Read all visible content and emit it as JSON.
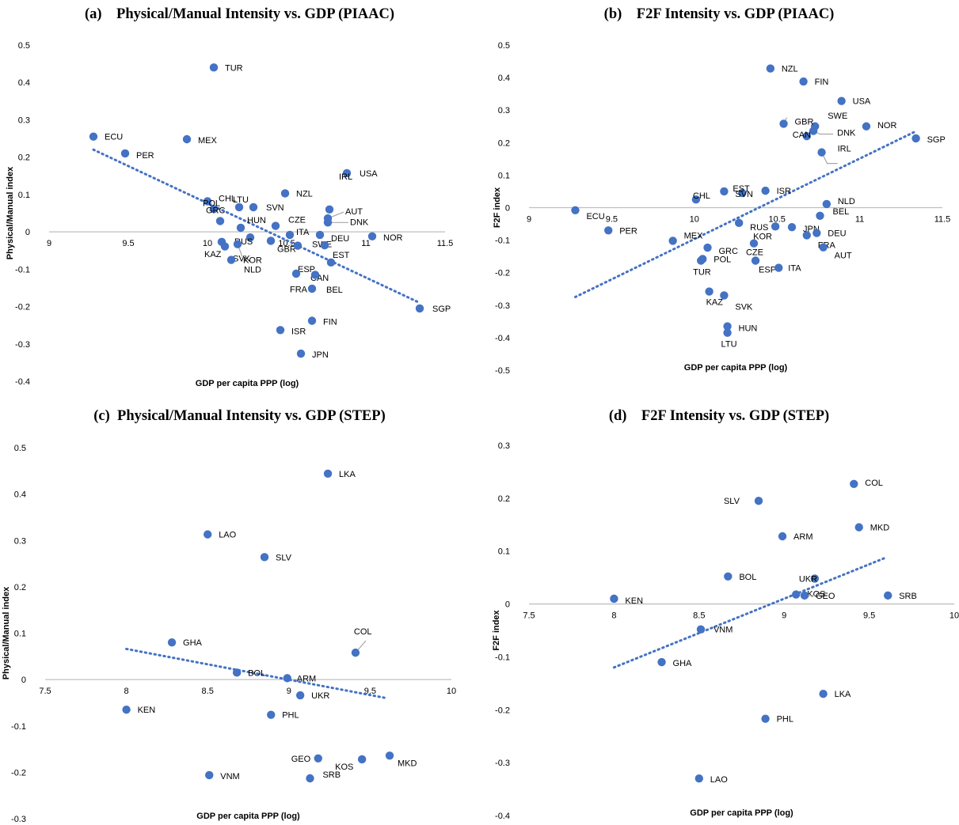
{
  "chart_data": [
    {
      "type": "scatter",
      "title": "(a)    Physical/Manual Intensity vs. GDP (PIAAC)",
      "xlabel": "GDP per capita PPP (log)",
      "ylabel": "Physical/Manual index",
      "xlim": [
        9,
        11.5
      ],
      "ylim": [
        -0.4,
        0.5
      ],
      "xticks": [
        9,
        9.5,
        10,
        10.5,
        11,
        11.5
      ],
      "yticks": [
        -0.4,
        -0.3,
        -0.2,
        -0.1,
        0,
        0.1,
        0.2,
        0.3,
        0.4,
        0.5
      ],
      "trendline": {
        "x": [
          9.28,
          11.34
        ],
        "y": [
          0.22,
          -0.19
        ]
      },
      "color": "#4472C4",
      "points": [
        {
          "label": "TUR",
          "x": 10.04,
          "y": 0.44
        },
        {
          "label": "ECU",
          "x": 9.28,
          "y": 0.255
        },
        {
          "label": "MEX",
          "x": 9.87,
          "y": 0.248
        },
        {
          "label": "PER",
          "x": 9.48,
          "y": 0.21
        },
        {
          "label": "USA",
          "x": 10.88,
          "y": 0.157
        },
        {
          "label": "NZL",
          "x": 10.49,
          "y": 0.103
        },
        {
          "label": "IRL",
          "x": 10.77,
          "y": 0.06
        },
        {
          "label": "CHL",
          "x": 10.0,
          "y": 0.082
        },
        {
          "label": "LTU",
          "x": 10.2,
          "y": 0.066
        },
        {
          "label": "SVN",
          "x": 10.29,
          "y": 0.066
        },
        {
          "label": "POL",
          "x": 10.04,
          "y": 0.061
        },
        {
          "label": "AUT",
          "x": 10.76,
          "y": 0.036
        },
        {
          "label": "DNK",
          "x": 10.76,
          "y": 0.025
        },
        {
          "label": "GRC",
          "x": 10.08,
          "y": 0.029
        },
        {
          "label": "HUN",
          "x": 10.21,
          "y": 0.011
        },
        {
          "label": "CZE",
          "x": 10.43,
          "y": 0.016
        },
        {
          "label": "RUS",
          "x": 10.27,
          "y": -0.015
        },
        {
          "label": "ITA",
          "x": 10.52,
          "y": -0.008
        },
        {
          "label": "DEU",
          "x": 10.71,
          "y": -0.008
        },
        {
          "label": "NOR",
          "x": 11.04,
          "y": -0.012
        },
        {
          "label": "KAZ",
          "x": 10.09,
          "y": -0.027
        },
        {
          "label": "SVK",
          "x": 10.11,
          "y": -0.039
        },
        {
          "label": "KOR",
          "x": 10.19,
          "y": -0.033
        },
        {
          "label": "GBR",
          "x": 10.4,
          "y": -0.024
        },
        {
          "label": "SWE",
          "x": 10.57,
          "y": -0.037
        },
        {
          "label": "EST",
          "x": 10.74,
          "y": -0.036
        },
        {
          "label": "NLD",
          "x": 10.15,
          "y": -0.075
        },
        {
          "label": "ESP",
          "x": 10.78,
          "y": -0.082
        },
        {
          "label": "CAN",
          "x": 10.56,
          "y": -0.112
        },
        {
          "label": "FRA",
          "x": 10.68,
          "y": -0.115
        },
        {
          "label": "BEL",
          "x": 10.66,
          "y": -0.152
        },
        {
          "label": "SGP",
          "x": 11.34,
          "y": -0.205
        },
        {
          "label": "FIN",
          "x": 10.66,
          "y": -0.238
        },
        {
          "label": "ISR",
          "x": 10.46,
          "y": -0.263
        },
        {
          "label": "JPN",
          "x": 10.59,
          "y": -0.326
        }
      ]
    },
    {
      "type": "scatter",
      "title": "(b)    F2F Intensity vs. GDP (PIAAC)",
      "xlabel": "GDP per capita PPP (log)",
      "ylabel": "F2F index",
      "xlim": [
        9,
        11.5
      ],
      "ylim": [
        -0.5,
        0.5
      ],
      "xticks": [
        9,
        9.5,
        10,
        10.5,
        11,
        11.5
      ],
      "yticks": [
        -0.5,
        -0.4,
        -0.3,
        -0.2,
        -0.1,
        0,
        0.1,
        0.2,
        0.3,
        0.4,
        0.5
      ],
      "trendline": {
        "x": [
          9.28,
          11.34
        ],
        "y": [
          -0.275,
          0.235
        ]
      },
      "color": "#4472C4",
      "points": [
        {
          "label": "NZL",
          "x": 10.46,
          "y": 0.428
        },
        {
          "label": "FIN",
          "x": 10.66,
          "y": 0.388
        },
        {
          "label": "USA",
          "x": 10.89,
          "y": 0.328
        },
        {
          "label": "SWE",
          "x": 10.73,
          "y": 0.25
        },
        {
          "label": "GBR",
          "x": 10.54,
          "y": 0.258
        },
        {
          "label": "NOR",
          "x": 11.04,
          "y": 0.25
        },
        {
          "label": "DNK",
          "x": 10.72,
          "y": 0.236
        },
        {
          "label": "CAN",
          "x": 10.68,
          "y": 0.22
        },
        {
          "label": "SGP",
          "x": 11.34,
          "y": 0.213
        },
        {
          "label": "IRL",
          "x": 10.77,
          "y": 0.17
        },
        {
          "label": "EST",
          "x": 10.29,
          "y": 0.045
        },
        {
          "label": "ISR",
          "x": 10.43,
          "y": 0.052
        },
        {
          "label": "CHL",
          "x": 10.01,
          "y": 0.025
        },
        {
          "label": "SVN",
          "x": 10.18,
          "y": 0.05
        },
        {
          "label": "NLD",
          "x": 10.8,
          "y": 0.011
        },
        {
          "label": "ECU",
          "x": 9.28,
          "y": -0.008
        },
        {
          "label": "BEL",
          "x": 10.76,
          "y": -0.025
        },
        {
          "label": "RUS",
          "x": 10.27,
          "y": -0.047
        },
        {
          "label": "JPN",
          "x": 10.59,
          "y": -0.06
        },
        {
          "label": "DEU",
          "x": 10.74,
          "y": -0.078
        },
        {
          "label": "PER",
          "x": 9.48,
          "y": -0.07
        },
        {
          "label": "KOR",
          "x": 10.49,
          "y": -0.058
        },
        {
          "label": "FRA",
          "x": 10.68,
          "y": -0.085
        },
        {
          "label": "MEX",
          "x": 9.87,
          "y": -0.102
        },
        {
          "label": "GRC",
          "x": 10.08,
          "y": -0.123
        },
        {
          "label": "CZE",
          "x": 10.36,
          "y": -0.11
        },
        {
          "label": "AUT",
          "x": 10.78,
          "y": -0.122
        },
        {
          "label": "POL",
          "x": 10.05,
          "y": -0.158
        },
        {
          "label": "ESP",
          "x": 10.37,
          "y": -0.163
        },
        {
          "label": "TUR",
          "x": 10.04,
          "y": -0.163
        },
        {
          "label": "ITA",
          "x": 10.51,
          "y": -0.185
        },
        {
          "label": "KAZ",
          "x": 10.09,
          "y": -0.258
        },
        {
          "label": "SVK",
          "x": 10.18,
          "y": -0.27
        },
        {
          "label": "HUN",
          "x": 10.2,
          "y": -0.365
        },
        {
          "label": "LTU",
          "x": 10.2,
          "y": -0.385
        }
      ]
    },
    {
      "type": "scatter",
      "title": "(c)  Physical/Manual Intensity vs. GDP (STEP)",
      "xlabel": "GDP per capita PPP (log)",
      "ylabel": "Physical/Manual index",
      "xlim": [
        7.5,
        10
      ],
      "ylim": [
        -0.3,
        0.5
      ],
      "xticks": [
        7.5,
        8,
        8.5,
        9,
        9.5,
        10
      ],
      "yticks": [
        -0.3,
        -0.2,
        -0.1,
        0,
        0.1,
        0.2,
        0.3,
        0.4,
        0.5
      ],
      "trendline": {
        "x": [
          8.0,
          9.6
        ],
        "y": [
          0.066,
          -0.04
        ]
      },
      "color": "#4472C4",
      "points": [
        {
          "label": "LKA",
          "x": 9.24,
          "y": 0.444
        },
        {
          "label": "LAO",
          "x": 8.5,
          "y": 0.313
        },
        {
          "label": "SLV",
          "x": 8.85,
          "y": 0.264
        },
        {
          "label": "GHA",
          "x": 8.28,
          "y": 0.08
        },
        {
          "label": "COL",
          "x": 9.41,
          "y": 0.058
        },
        {
          "label": "BOL",
          "x": 8.68,
          "y": 0.015
        },
        {
          "label": "ARM",
          "x": 8.99,
          "y": 0.003
        },
        {
          "label": "UKR",
          "x": 9.07,
          "y": -0.034
        },
        {
          "label": "KEN",
          "x": 8.0,
          "y": -0.065
        },
        {
          "label": "PHL",
          "x": 8.89,
          "y": -0.076
        },
        {
          "label": "GEO",
          "x": 9.18,
          "y": -0.17
        },
        {
          "label": "KOS",
          "x": 9.45,
          "y": -0.172
        },
        {
          "label": "MKD",
          "x": 9.62,
          "y": -0.164
        },
        {
          "label": "SRB",
          "x": 9.13,
          "y": -0.213
        },
        {
          "label": "VNM",
          "x": 8.51,
          "y": -0.206
        }
      ]
    },
    {
      "type": "scatter",
      "title": "(d)    F2F Intensity vs. GDP (STEP)",
      "xlabel": "GDP per capita PPP (log)",
      "ylabel": "F2F index",
      "xlim": [
        7.5,
        10
      ],
      "ylim": [
        -0.4,
        0.3
      ],
      "xticks": [
        7.5,
        8,
        8.5,
        9,
        9.5,
        10
      ],
      "yticks": [
        -0.4,
        -0.3,
        -0.2,
        -0.1,
        0,
        0.1,
        0.2,
        0.3
      ],
      "trendline": {
        "x": [
          8.0,
          9.6
        ],
        "y": [
          -0.12,
          0.088
        ]
      },
      "color": "#4472C4",
      "points": [
        {
          "label": "COL",
          "x": 9.41,
          "y": 0.227
        },
        {
          "label": "SLV",
          "x": 8.85,
          "y": 0.195
        },
        {
          "label": "MKD",
          "x": 9.44,
          "y": 0.145
        },
        {
          "label": "ARM",
          "x": 8.99,
          "y": 0.128
        },
        {
          "label": "BOL",
          "x": 8.67,
          "y": 0.052
        },
        {
          "label": "UKR",
          "x": 9.18,
          "y": 0.048
        },
        {
          "label": "KOS",
          "x": 9.07,
          "y": 0.018
        },
        {
          "label": "GEO",
          "x": 9.12,
          "y": 0.016
        },
        {
          "label": "SRB",
          "x": 9.61,
          "y": 0.016
        },
        {
          "label": "KEN",
          "x": 8.0,
          "y": 0.01
        },
        {
          "label": "VNM",
          "x": 8.51,
          "y": -0.048
        },
        {
          "label": "GHA",
          "x": 8.28,
          "y": -0.11
        },
        {
          "label": "LKA",
          "x": 9.23,
          "y": -0.17
        },
        {
          "label": "PHL",
          "x": 8.89,
          "y": -0.217
        },
        {
          "label": "LAO",
          "x": 8.5,
          "y": -0.33
        }
      ]
    }
  ]
}
